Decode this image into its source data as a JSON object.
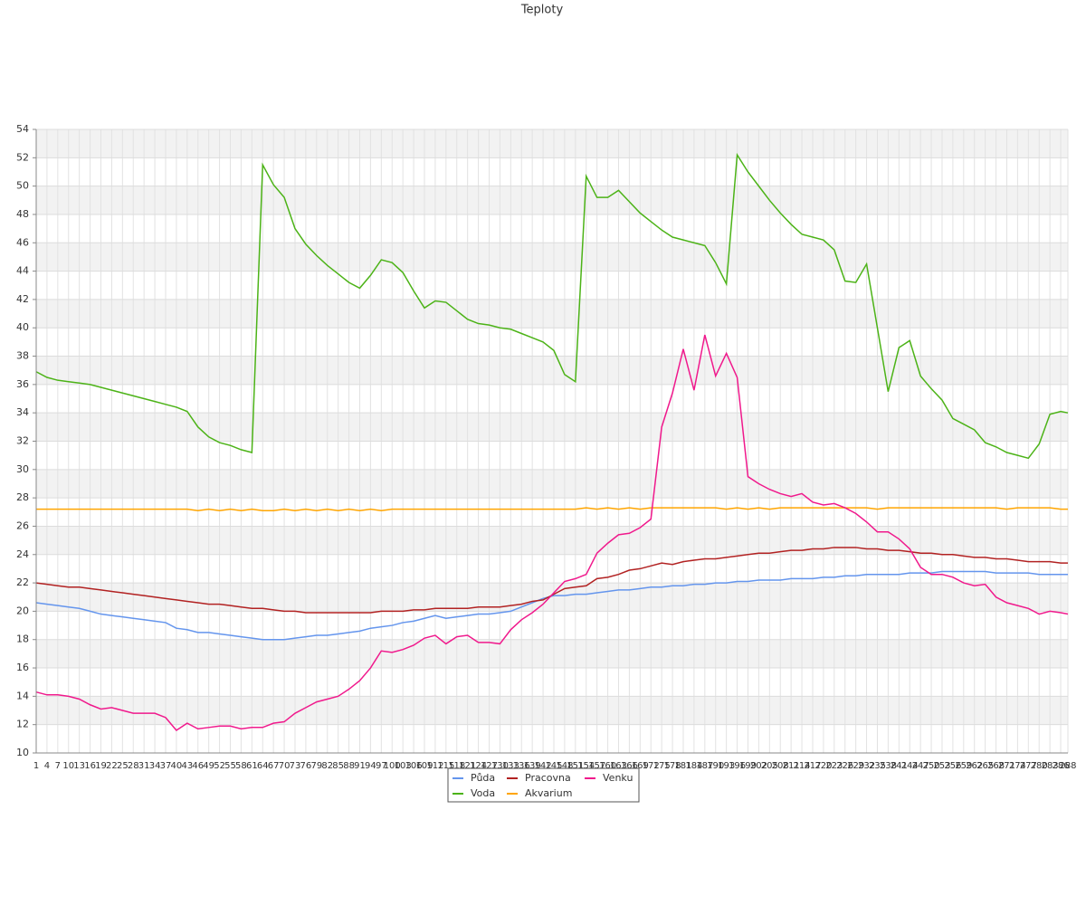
{
  "chart_data": {
    "type": "line",
    "title": "Teploty",
    "x": [
      1,
      4,
      7,
      10,
      13,
      16,
      19,
      22,
      25,
      28,
      31,
      34,
      37,
      40,
      43,
      46,
      49,
      52,
      55,
      58,
      61,
      64,
      67,
      70,
      73,
      76,
      79,
      82,
      85,
      88,
      91,
      94,
      97,
      100,
      103,
      106,
      109,
      112,
      115,
      118,
      121,
      124,
      127,
      130,
      133,
      136,
      139,
      142,
      145,
      148,
      151,
      154,
      157,
      160,
      163,
      166,
      169,
      172,
      175,
      178,
      181,
      184,
      187,
      190,
      193,
      196,
      199,
      202,
      205,
      208,
      211,
      214,
      217,
      220,
      223,
      226,
      229,
      232,
      235,
      238,
      241,
      244,
      247,
      250,
      253,
      256,
      259,
      262,
      265,
      268,
      271,
      274,
      277,
      280,
      283,
      286,
      288
    ],
    "xlim": [
      1,
      288
    ],
    "ylim": [
      10,
      54
    ],
    "yticks": [
      10,
      12,
      14,
      16,
      18,
      20,
      22,
      24,
      26,
      28,
      30,
      32,
      34,
      36,
      38,
      40,
      42,
      44,
      46,
      48,
      50,
      52,
      54
    ],
    "grid": true,
    "legend": "bottom",
    "series": [
      {
        "name": "Půda",
        "color": "#6495ed",
        "values": [
          20.6,
          20.5,
          20.4,
          20.3,
          20.2,
          20.0,
          19.8,
          19.7,
          19.6,
          19.5,
          19.4,
          19.3,
          19.2,
          18.8,
          18.7,
          18.5,
          18.5,
          18.4,
          18.3,
          18.2,
          18.1,
          18.0,
          18.0,
          18.0,
          18.1,
          18.2,
          18.3,
          18.3,
          18.4,
          18.5,
          18.6,
          18.8,
          18.9,
          19.0,
          19.2,
          19.3,
          19.5,
          19.7,
          19.5,
          19.6,
          19.7,
          19.8,
          19.8,
          19.9,
          20.0,
          20.3,
          20.6,
          20.9,
          21.1,
          21.1,
          21.2,
          21.2,
          21.3,
          21.4,
          21.5,
          21.5,
          21.6,
          21.7,
          21.7,
          21.8,
          21.8,
          21.9,
          21.9,
          22.0,
          22.0,
          22.1,
          22.1,
          22.2,
          22.2,
          22.2,
          22.3,
          22.3,
          22.3,
          22.4,
          22.4,
          22.5,
          22.5,
          22.6,
          22.6,
          22.6,
          22.6,
          22.7,
          22.7,
          22.7,
          22.8,
          22.8,
          22.8,
          22.8,
          22.8,
          22.7,
          22.7,
          22.7,
          22.7,
          22.6,
          22.6,
          22.6,
          22.6
        ]
      },
      {
        "name": "Voda",
        "color": "#4cb317",
        "values": [
          36.9,
          36.5,
          36.3,
          36.2,
          36.1,
          36.0,
          35.8,
          35.6,
          35.4,
          35.2,
          35.0,
          34.8,
          34.6,
          34.4,
          34.1,
          33.0,
          32.3,
          31.9,
          31.7,
          31.4,
          31.2,
          51.5,
          50.1,
          49.2,
          47.0,
          45.9,
          45.1,
          44.4,
          43.8,
          43.2,
          42.8,
          43.7,
          44.8,
          44.6,
          43.9,
          42.6,
          41.4,
          41.9,
          41.8,
          41.2,
          40.6,
          40.3,
          40.2,
          40.0,
          39.9,
          39.6,
          39.3,
          39.0,
          38.4,
          36.7,
          36.2,
          50.7,
          49.2,
          49.2,
          49.7,
          48.9,
          48.1,
          47.5,
          46.9,
          46.4,
          46.2,
          46.0,
          45.8,
          44.6,
          43.1,
          52.2,
          51.0,
          50.0,
          49.0,
          48.1,
          47.3,
          46.6,
          46.4,
          46.2,
          45.5,
          43.3,
          43.2,
          44.5,
          40.0,
          35.5,
          38.6,
          39.1,
          36.6,
          35.7,
          34.9,
          33.6,
          33.2,
          32.8,
          31.9,
          31.6,
          31.2,
          31.0,
          30.8,
          31.8,
          33.9,
          34.1,
          34.0
        ]
      },
      {
        "name": "Pracovna",
        "color": "#b22222",
        "values": [
          22.0,
          21.9,
          21.8,
          21.7,
          21.7,
          21.6,
          21.5,
          21.4,
          21.3,
          21.2,
          21.1,
          21.0,
          20.9,
          20.8,
          20.7,
          20.6,
          20.5,
          20.5,
          20.4,
          20.3,
          20.2,
          20.2,
          20.1,
          20.0,
          20.0,
          19.9,
          19.9,
          19.9,
          19.9,
          19.9,
          19.9,
          19.9,
          20.0,
          20.0,
          20.0,
          20.1,
          20.1,
          20.2,
          20.2,
          20.2,
          20.2,
          20.3,
          20.3,
          20.3,
          20.4,
          20.5,
          20.7,
          20.8,
          21.2,
          21.6,
          21.7,
          21.8,
          22.3,
          22.4,
          22.6,
          22.9,
          23.0,
          23.2,
          23.4,
          23.3,
          23.5,
          23.6,
          23.7,
          23.7,
          23.8,
          23.9,
          24.0,
          24.1,
          24.1,
          24.2,
          24.3,
          24.3,
          24.4,
          24.4,
          24.5,
          24.5,
          24.5,
          24.4,
          24.4,
          24.3,
          24.3,
          24.2,
          24.1,
          24.1,
          24.0,
          24.0,
          23.9,
          23.8,
          23.8,
          23.7,
          23.7,
          23.6,
          23.5,
          23.5,
          23.5,
          23.4,
          23.4
        ]
      },
      {
        "name": "Akvarium",
        "color": "#ffa500",
        "values": [
          27.2,
          27.2,
          27.2,
          27.2,
          27.2,
          27.2,
          27.2,
          27.2,
          27.2,
          27.2,
          27.2,
          27.2,
          27.2,
          27.2,
          27.2,
          27.1,
          27.2,
          27.1,
          27.2,
          27.1,
          27.2,
          27.1,
          27.1,
          27.2,
          27.1,
          27.2,
          27.1,
          27.2,
          27.1,
          27.2,
          27.1,
          27.2,
          27.1,
          27.2,
          27.2,
          27.2,
          27.2,
          27.2,
          27.2,
          27.2,
          27.2,
          27.2,
          27.2,
          27.2,
          27.2,
          27.2,
          27.2,
          27.2,
          27.2,
          27.2,
          27.2,
          27.3,
          27.2,
          27.3,
          27.2,
          27.3,
          27.2,
          27.3,
          27.3,
          27.3,
          27.3,
          27.3,
          27.3,
          27.3,
          27.2,
          27.3,
          27.2,
          27.3,
          27.2,
          27.3,
          27.3,
          27.3,
          27.3,
          27.3,
          27.3,
          27.3,
          27.3,
          27.3,
          27.2,
          27.3,
          27.3,
          27.3,
          27.3,
          27.3,
          27.3,
          27.3,
          27.3,
          27.3,
          27.3,
          27.3,
          27.2,
          27.3,
          27.3,
          27.3,
          27.3,
          27.2,
          27.2
        ]
      },
      {
        "name": "Venku",
        "color": "#f0198c",
        "values": [
          14.3,
          14.1,
          14.1,
          14.0,
          13.8,
          13.4,
          13.1,
          13.2,
          13.0,
          12.8,
          12.8,
          12.8,
          12.5,
          11.6,
          12.1,
          11.7,
          11.8,
          11.9,
          11.9,
          11.7,
          11.8,
          11.8,
          12.1,
          12.2,
          12.8,
          13.2,
          13.6,
          13.8,
          14.0,
          14.5,
          15.1,
          16.0,
          17.2,
          17.1,
          17.3,
          17.6,
          18.1,
          18.3,
          17.7,
          18.2,
          18.3,
          17.8,
          17.8,
          17.7,
          18.7,
          19.4,
          19.9,
          20.5,
          21.3,
          22.1,
          22.3,
          22.6,
          24.1,
          24.8,
          25.4,
          25.5,
          25.9,
          26.5,
          33.0,
          35.4,
          38.5,
          35.6,
          39.5,
          36.6,
          38.2,
          36.5,
          29.5,
          29.0,
          28.6,
          28.3,
          28.1,
          28.3,
          27.7,
          27.5,
          27.6,
          27.3,
          26.9,
          26.3,
          25.6,
          25.6,
          25.1,
          24.4,
          23.1,
          22.6,
          22.6,
          22.4,
          22.0,
          21.8,
          21.9,
          21.0,
          20.6,
          20.4,
          20.2,
          19.8,
          20.0,
          19.9,
          19.8
        ]
      }
    ]
  }
}
